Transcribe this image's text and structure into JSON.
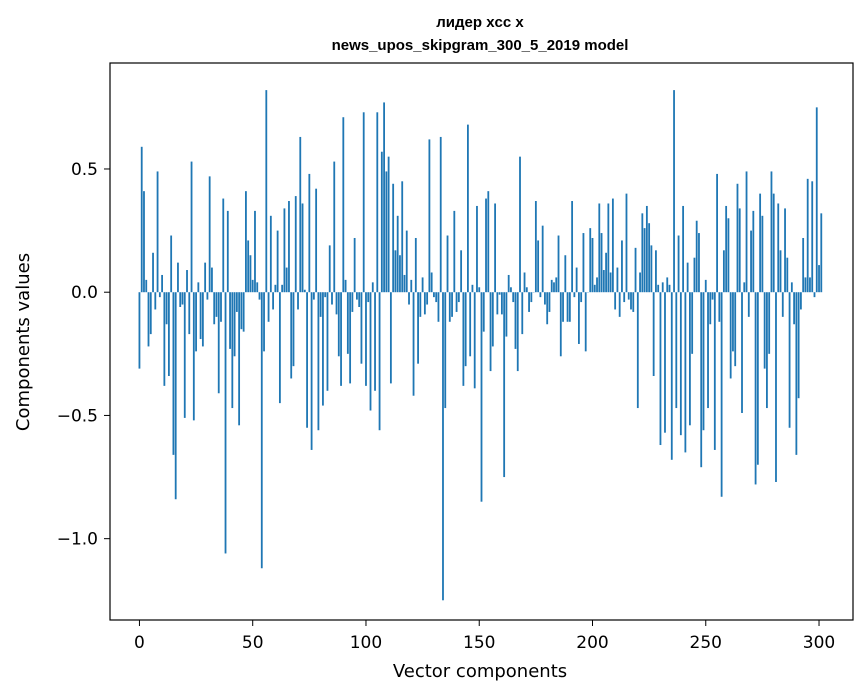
{
  "chart_data": {
    "type": "bar",
    "title": "лидер xcc x\nnews_upos_skipgram_300_5_2019 model",
    "xlabel": "Vector components",
    "ylabel": "Components values",
    "xlim": [
      -13,
      315
    ],
    "ylim": [
      -1.33,
      0.93
    ],
    "x_ticks": [
      0,
      50,
      100,
      150,
      200,
      250,
      300
    ],
    "y_ticks": [
      -1.0,
      -0.5,
      0.0,
      0.5
    ],
    "y_tick_labels": [
      "−1.0",
      "−0.5",
      "0.0",
      "0.5"
    ],
    "bar_color": "#1f77b4",
    "grid": false,
    "values": [
      -0.31,
      0.59,
      0.41,
      0.05,
      -0.22,
      -0.17,
      0.16,
      -0.07,
      0.49,
      -0.02,
      0.07,
      -0.38,
      -0.13,
      -0.34,
      0.23,
      -0.66,
      -0.84,
      0.12,
      -0.06,
      -0.05,
      -0.51,
      0.09,
      -0.17,
      0.53,
      -0.52,
      -0.24,
      0.04,
      -0.19,
      -0.22,
      0.12,
      -0.03,
      0.47,
      0.1,
      -0.13,
      -0.1,
      -0.41,
      -0.12,
      0.38,
      -1.06,
      0.33,
      -0.23,
      -0.47,
      -0.26,
      -0.08,
      -0.54,
      -0.15,
      -0.16,
      0.41,
      0.21,
      0.15,
      0.05,
      0.33,
      0.04,
      -0.03,
      -1.12,
      -0.24,
      0.82,
      -0.12,
      0.31,
      -0.07,
      0.03,
      0.25,
      -0.45,
      0.03,
      0.34,
      0.1,
      0.37,
      -0.35,
      -0.3,
      0.39,
      -0.07,
      0.63,
      0.36,
      0.01,
      -0.55,
      0.48,
      -0.64,
      -0.03,
      0.42,
      -0.56,
      -0.1,
      -0.46,
      -0.02,
      -0.4,
      0.19,
      -0.05,
      0.53,
      -0.09,
      -0.26,
      -0.38,
      0.71,
      0.05,
      -0.25,
      -0.37,
      -0.08,
      0.22,
      -0.03,
      -0.06,
      -0.29,
      0.73,
      -0.38,
      -0.04,
      -0.48,
      0.04,
      -0.4,
      0.73,
      -0.56,
      0.57,
      0.77,
      0.49,
      0.55,
      -0.37,
      0.44,
      0.17,
      0.31,
      0.15,
      0.45,
      0.07,
      0.25,
      -0.05,
      0.05,
      -0.42,
      0.22,
      -0.29,
      -0.1,
      0.06,
      -0.09,
      -0.05,
      0.62,
      0.08,
      -0.02,
      -0.04,
      -0.12,
      0.63,
      -1.25,
      -0.47,
      0.23,
      -0.12,
      -0.1,
      0.33,
      -0.08,
      -0.04,
      0.17,
      -0.38,
      -0.3,
      0.68,
      -0.26,
      0.03,
      -0.39,
      0.35,
      0.02,
      -0.85,
      -0.16,
      0.38,
      0.41,
      -0.32,
      -0.22,
      0.36,
      -0.09,
      -0.01,
      -0.09,
      -0.75,
      -0.18,
      0.07,
      0.02,
      -0.04,
      -0.23,
      -0.32,
      0.55,
      -0.17,
      0.08,
      0.02,
      -0.08,
      -0.04,
      0.0,
      0.37,
      0.21,
      -0.02,
      0.27,
      -0.05,
      -0.13,
      -0.08,
      0.05,
      0.04,
      0.06,
      0.23,
      -0.26,
      -0.12,
      0.15,
      -0.12,
      -0.12,
      0.37,
      -0.02,
      0.1,
      -0.21,
      -0.04,
      0.24,
      -0.24,
      0.0,
      0.26,
      0.22,
      0.03,
      0.06,
      0.36,
      0.24,
      0.09,
      0.16,
      0.36,
      0.08,
      0.38,
      -0.07,
      0.1,
      -0.1,
      0.21,
      -0.04,
      0.4,
      -0.03,
      -0.07,
      -0.08,
      0.18,
      -0.47,
      0.08,
      0.32,
      0.26,
      0.35,
      0.28,
      0.19,
      -0.34,
      0.17,
      0.03,
      -0.62,
      0.04,
      -0.57,
      0.06,
      0.03,
      -0.68,
      0.82,
      -0.47,
      0.23,
      -0.58,
      0.35,
      -0.65,
      0.12,
      -0.54,
      -0.25,
      0.14,
      0.29,
      0.24,
      -0.71,
      -0.56,
      0.05,
      -0.47,
      -0.13,
      -0.03,
      -0.64,
      0.48,
      -0.12,
      -0.83,
      0.17,
      0.35,
      0.3,
      -0.35,
      -0.24,
      -0.3,
      0.44,
      0.34,
      -0.49,
      0.04,
      0.49,
      -0.1,
      0.25,
      0.33,
      -0.78,
      -0.7,
      0.4,
      0.31,
      -0.31,
      -0.47,
      -0.25,
      0.49,
      0.4,
      -0.77,
      0.36,
      0.17,
      -0.1,
      0.34,
      0.14,
      -0.55,
      0.04,
      -0.13,
      -0.66,
      -0.43,
      -0.07,
      0.22,
      0.06,
      0.46,
      0.06,
      0.45,
      -0.02,
      0.75,
      0.11,
      0.32
    ]
  }
}
